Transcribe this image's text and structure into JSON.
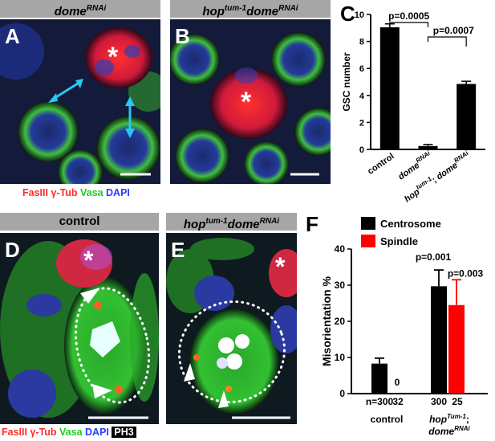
{
  "top_row": {
    "header_a": {
      "main": "dome",
      "sup": "RNAi"
    },
    "header_b": {
      "pre": "hop",
      "sup1": "tum-1",
      "mid": "dome",
      "sup2": "RNAi"
    },
    "panel_a_label": "A",
    "panel_b_label": "B",
    "legend": {
      "fasiii": "FasIII",
      "gtub": "γ-Tub",
      "vasa": "Vasa",
      "dapi": "DAPI"
    }
  },
  "bottom_row": {
    "header_d": "control",
    "header_e": {
      "pre": "hop",
      "sup1": "tum-1",
      "mid": "dome",
      "sup2": "RNAi"
    },
    "panel_d_label": "D",
    "panel_e_label": "E",
    "legend": {
      "fasiii": "FasIII",
      "gtub": "γ-Tub",
      "vasa": "Vasa",
      "dapi": "DAPI",
      "ph3": "PH3"
    }
  },
  "asterisk": "*",
  "chart_c": {
    "panel_label": "C",
    "type": "bar",
    "ylabel": "GSC number",
    "ylim": [
      0,
      10
    ],
    "yticks": [
      0,
      2,
      4,
      6,
      8,
      10
    ],
    "categories": [
      {
        "main": "control"
      },
      {
        "main": "dome",
        "sup": "RNAi"
      },
      {
        "main": "hop",
        "sup": "tum-1",
        "sep": "; ",
        "main2": "dome",
        "sup2": "RNAi"
      }
    ],
    "values": [
      9.05,
      0.25,
      4.85
    ],
    "errors": [
      0.25,
      0.12,
      0.2
    ],
    "bar_color": "#000000",
    "comparisons": [
      {
        "from": 0,
        "to": 1,
        "label": "p=0.0005"
      },
      {
        "from": 1,
        "to": 2,
        "label": "p=0.0007"
      }
    ]
  },
  "chart_f": {
    "panel_label": "F",
    "type": "bar",
    "ylabel": "Misorientation %",
    "ylim": [
      0,
      40
    ],
    "yticks": [
      0,
      10,
      20,
      30,
      40
    ],
    "legend": [
      {
        "name": "Centrosome",
        "color": "#000000"
      },
      {
        "name": "Spindle",
        "color": "#ff0000"
      }
    ],
    "groups": [
      {
        "label": "control",
        "n_black": "n=300",
        "n_red": "32"
      },
      {
        "label_pre": "hop",
        "label_sup": "Tum-1",
        "label_sep": ";",
        "label_line2": "dome",
        "label_sup2": "RNAi",
        "n_black": "300",
        "n_red": "25"
      }
    ],
    "series": [
      {
        "name": "Centrosome",
        "values": [
          8.3,
          29.7
        ],
        "errors": [
          1.5,
          4.5
        ]
      },
      {
        "name": "Spindle",
        "values": [
          0,
          24.5
        ],
        "errors": [
          0,
          7.0
        ]
      }
    ],
    "zero_label": "0",
    "p_labels": [
      {
        "text": "p=0.001",
        "color": "#000000"
      },
      {
        "text": "p=0.003",
        "color": "#ff0000"
      }
    ]
  }
}
